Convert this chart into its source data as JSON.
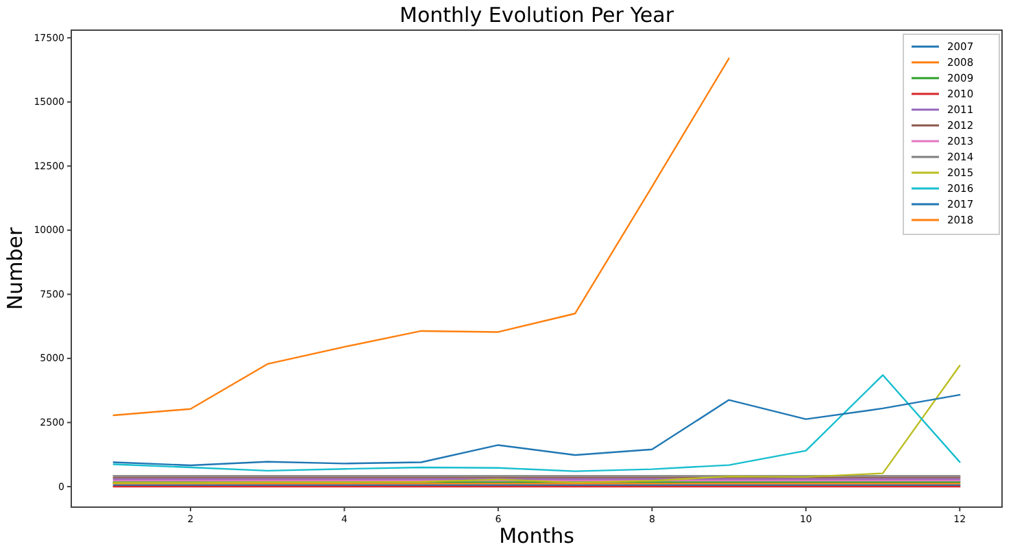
{
  "chart_data": {
    "type": "line",
    "title": "Monthly Evolution Per Year",
    "xlabel": "Months",
    "ylabel": "Number",
    "x": [
      1,
      2,
      3,
      4,
      5,
      6,
      7,
      8,
      9,
      10,
      11,
      12
    ],
    "xlim": [
      0.45,
      12.55
    ],
    "xticks": [
      2,
      4,
      6,
      8,
      10,
      12
    ],
    "ylim": [
      -800,
      17800
    ],
    "yticks": [
      0,
      2500,
      5000,
      7500,
      10000,
      12500,
      15000,
      17500
    ],
    "grid": false,
    "legend": "top right",
    "marker": "none",
    "line_style": "solid",
    "series": [
      {
        "name": "2007",
        "color": "#1f77b4",
        "values": [
          60,
          60,
          60,
          60,
          60,
          60,
          60,
          60,
          60,
          60,
          60,
          60
        ]
      },
      {
        "name": "2008",
        "color": "#ff7f0e",
        "values": [
          120,
          120,
          120,
          120,
          120,
          120,
          120,
          120,
          120,
          120,
          120,
          120
        ]
      },
      {
        "name": "2009",
        "color": "#2ca02c",
        "values": [
          180,
          180,
          180,
          180,
          180,
          180,
          180,
          180,
          180,
          180,
          180,
          180
        ]
      },
      {
        "name": "2010",
        "color": "#d62728",
        "values": [
          0,
          0,
          0,
          0,
          0,
          0,
          0,
          0,
          0,
          0,
          0,
          0
        ]
      },
      {
        "name": "2011",
        "color": "#9467bd",
        "values": [
          300,
          300,
          300,
          300,
          300,
          300,
          300,
          300,
          300,
          300,
          300,
          300
        ]
      },
      {
        "name": "2012",
        "color": "#8c564b",
        "values": [
          360,
          360,
          360,
          360,
          360,
          360,
          360,
          360,
          360,
          360,
          360,
          360
        ]
      },
      {
        "name": "2013",
        "color": "#e377c2",
        "values": [
          240,
          240,
          240,
          240,
          240,
          240,
          240,
          240,
          240,
          240,
          240,
          240
        ]
      },
      {
        "name": "2014",
        "color": "#7f7f7f",
        "values": [
          420,
          420,
          420,
          420,
          420,
          420,
          420,
          420,
          420,
          420,
          420,
          420
        ]
      },
      {
        "name": "2015",
        "color": "#bcbd22",
        "values": [
          150,
          150,
          170,
          170,
          190,
          280,
          160,
          230,
          400,
          380,
          520,
          4720
        ]
      },
      {
        "name": "2016",
        "color": "#17becf",
        "values": [
          870,
          750,
          620,
          690,
          750,
          730,
          600,
          680,
          840,
          1400,
          4350,
          960
        ]
      },
      {
        "name": "2017",
        "color": "#1f77b4",
        "values": [
          950,
          830,
          970,
          900,
          950,
          1620,
          1230,
          1450,
          3380,
          2630,
          3050,
          3580
        ]
      },
      {
        "name": "2018",
        "color": "#ff7f0e",
        "values": [
          2780,
          3030,
          4780,
          5450,
          6070,
          6030,
          6750,
          11700,
          16700,
          null,
          null,
          null
        ]
      }
    ]
  }
}
